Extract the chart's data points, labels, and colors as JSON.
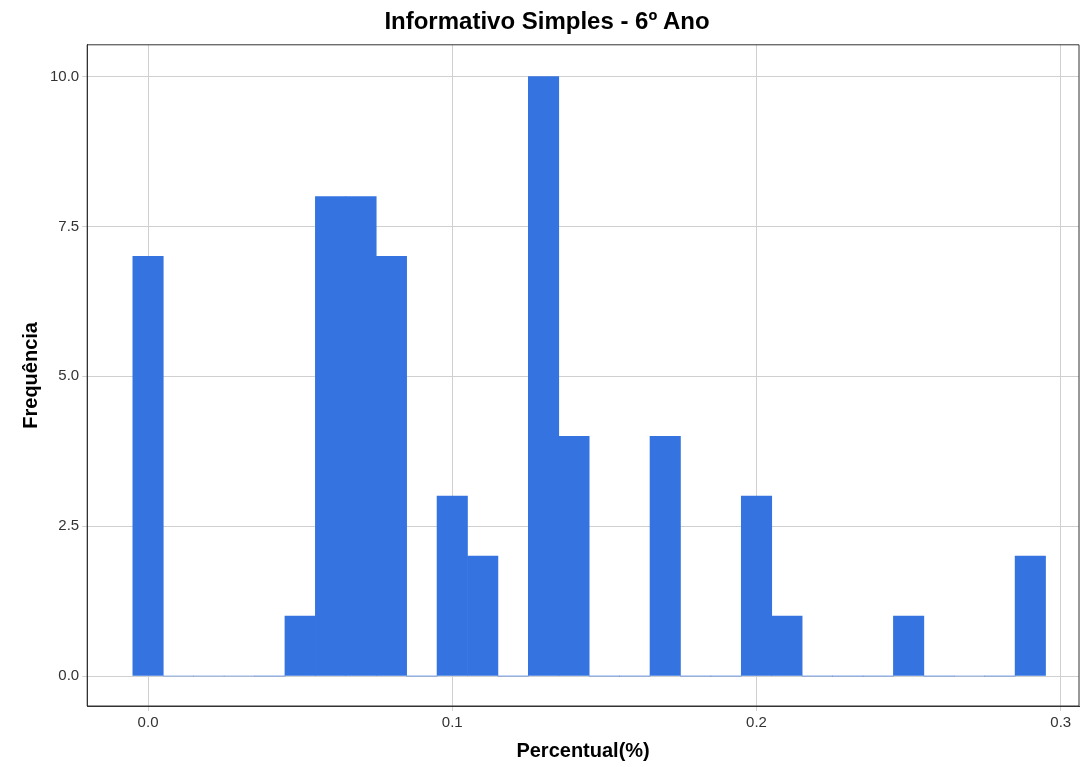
{
  "chart_data": {
    "type": "histogram",
    "title": "Informativo Simples - 6º Ano",
    "xlabel": "Percentual(%)",
    "ylabel": "Frequência",
    "color": "#3574e0",
    "bins": [
      -0.005,
      0.005,
      0.015,
      0.025,
      0.035,
      0.045,
      0.055,
      0.065,
      0.075,
      0.085,
      0.095,
      0.105,
      0.115,
      0.125,
      0.135,
      0.145,
      0.155,
      0.165,
      0.175,
      0.185,
      0.195,
      0.205,
      0.215,
      0.225,
      0.235,
      0.245,
      0.255,
      0.265,
      0.275,
      0.285,
      0.295
    ],
    "values": [
      7,
      0,
      0,
      0,
      0,
      1,
      8,
      8,
      7,
      0,
      3,
      2,
      0,
      10,
      4,
      0,
      0,
      4,
      0,
      0,
      3,
      1,
      0,
      0,
      0,
      1,
      0,
      0,
      0,
      2
    ],
    "xlim": [
      -0.02,
      0.306
    ],
    "ylim": [
      -0.5,
      10.53
    ],
    "xticks": [
      {
        "value": 0,
        "label": "0.0"
      },
      0.1,
      0.2,
      0.3
    ],
    "yticks": [
      {
        "value": 0,
        "label": "0.0"
      },
      2.5,
      {
        "value": 5,
        "label": "5.0"
      },
      7.5,
      {
        "value": 10,
        "label": "10.0"
      }
    ],
    "grid": true,
    "legend": false
  }
}
